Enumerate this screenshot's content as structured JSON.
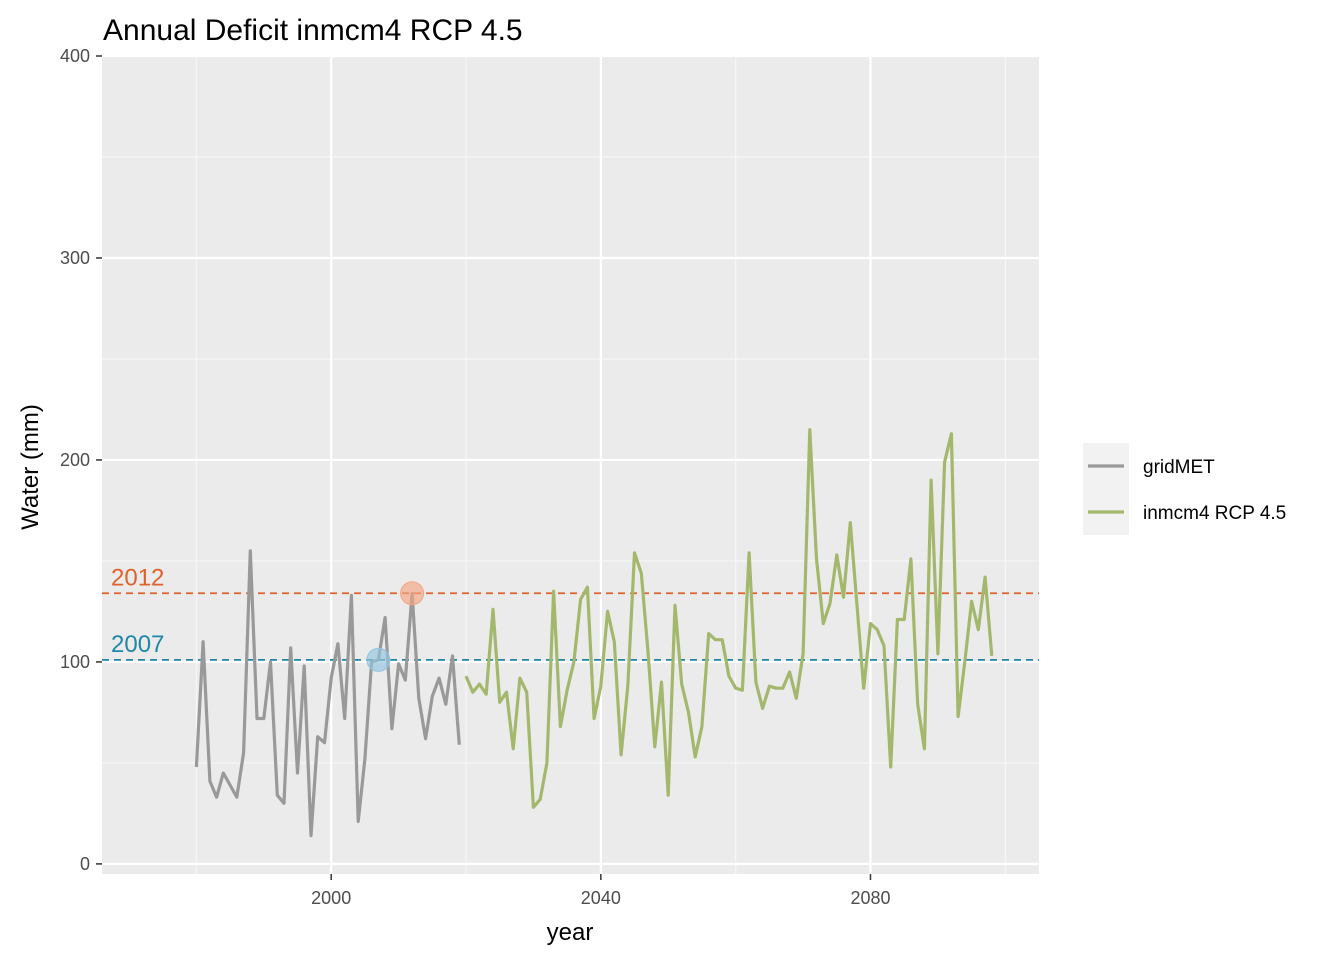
{
  "chart_data": {
    "type": "line",
    "title": "Annual Deficit inmcm4 RCP 4.5",
    "xlabel": "year",
    "ylabel": "Water (mm)",
    "xlim": [
      1966,
      2105
    ],
    "ylim": [
      -5,
      400
    ],
    "x_ticks": [
      2000,
      2040,
      2080
    ],
    "y_ticks": [
      0,
      100,
      200,
      300,
      400
    ],
    "grid": true,
    "legend_position": "right",
    "reference_lines": [
      {
        "label": "2012",
        "value": 134,
        "color": "#e0612a"
      },
      {
        "label": "2007",
        "value": 101,
        "color": "#1f87a8"
      }
    ],
    "highlight_points": [
      {
        "year": 2012,
        "value": 134,
        "color": "#f4a582"
      },
      {
        "year": 2007,
        "value": 101,
        "color": "#92c5de"
      }
    ],
    "series": [
      {
        "name": "gridMET",
        "color": "#999999",
        "x": [
          1980,
          1981,
          1982,
          1983,
          1984,
          1985,
          1986,
          1987,
          1988,
          1989,
          1990,
          1991,
          1992,
          1993,
          1994,
          1995,
          1996,
          1997,
          1998,
          1999,
          2000,
          2001,
          2002,
          2003,
          2004,
          2005,
          2006,
          2007,
          2008,
          2009,
          2010,
          2011,
          2012,
          2013,
          2014,
          2015,
          2016,
          2017,
          2018,
          2019
        ],
        "values": [
          48,
          110,
          41,
          33,
          45,
          39,
          33,
          55,
          155,
          72,
          72,
          100,
          34,
          30,
          107,
          45,
          98,
          14,
          63,
          60,
          92,
          109,
          72,
          133,
          21,
          52,
          100,
          101,
          122,
          67,
          99,
          91,
          134,
          82,
          62,
          83,
          92,
          79,
          103,
          59
        ]
      },
      {
        "name": "inmcm4 RCP 4.5",
        "color": "#a3b86c",
        "x": [
          2020,
          2021,
          2022,
          2023,
          2024,
          2025,
          2026,
          2027,
          2028,
          2029,
          2030,
          2031,
          2032,
          2033,
          2034,
          2035,
          2036,
          2037,
          2038,
          2039,
          2040,
          2041,
          2042,
          2043,
          2044,
          2045,
          2046,
          2047,
          2048,
          2049,
          2050,
          2051,
          2052,
          2053,
          2054,
          2055,
          2056,
          2057,
          2058,
          2059,
          2060,
          2061,
          2062,
          2063,
          2064,
          2065,
          2066,
          2067,
          2068,
          2069,
          2070,
          2071,
          2072,
          2073,
          2074,
          2075,
          2076,
          2077,
          2078,
          2079,
          2080,
          2081,
          2082,
          2083,
          2084,
          2085,
          2086,
          2087,
          2088,
          2089,
          2090,
          2091,
          2092,
          2093,
          2094,
          2095,
          2096,
          2097,
          2098
        ],
        "values": [
          93,
          85,
          89,
          84,
          126,
          80,
          85,
          57,
          92,
          85,
          28,
          32,
          50,
          135,
          68,
          86,
          100,
          131,
          137,
          72,
          88,
          125,
          110,
          54,
          88,
          154,
          144,
          105,
          58,
          90,
          34,
          128,
          89,
          75,
          53,
          68,
          114,
          111,
          111,
          93,
          87,
          86,
          154,
          90,
          77,
          88,
          87,
          87,
          95,
          82,
          104,
          215,
          151,
          119,
          129,
          153,
          132,
          169,
          128,
          87,
          119,
          116,
          108,
          48,
          121,
          121,
          151,
          79,
          57,
          190,
          104,
          199,
          213,
          73,
          100,
          130,
          116,
          142,
          103
        ]
      }
    ]
  }
}
